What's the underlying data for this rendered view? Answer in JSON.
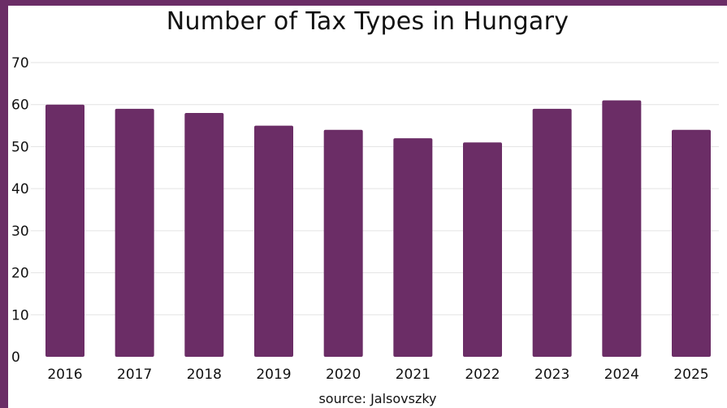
{
  "chart_data": {
    "type": "bar",
    "title": "Number of Tax Types in Hungary",
    "categories": [
      "2016",
      "2017",
      "2018",
      "2019",
      "2020",
      "2021",
      "2022",
      "2023",
      "2024",
      "2025"
    ],
    "values": [
      60,
      59,
      58,
      55,
      54,
      52,
      51,
      59,
      61,
      54
    ],
    "ylim": [
      0,
      70
    ],
    "yticks": [
      "0",
      "10",
      "20",
      "30",
      "40",
      "50",
      "60",
      "70"
    ],
    "grid": true,
    "bar_color": "#6b2d66",
    "source": "source: Jalsovszky"
  },
  "colors": {
    "frame": "#6b2d66",
    "background": "#ffffff",
    "gridline": "#e3e3e3"
  }
}
